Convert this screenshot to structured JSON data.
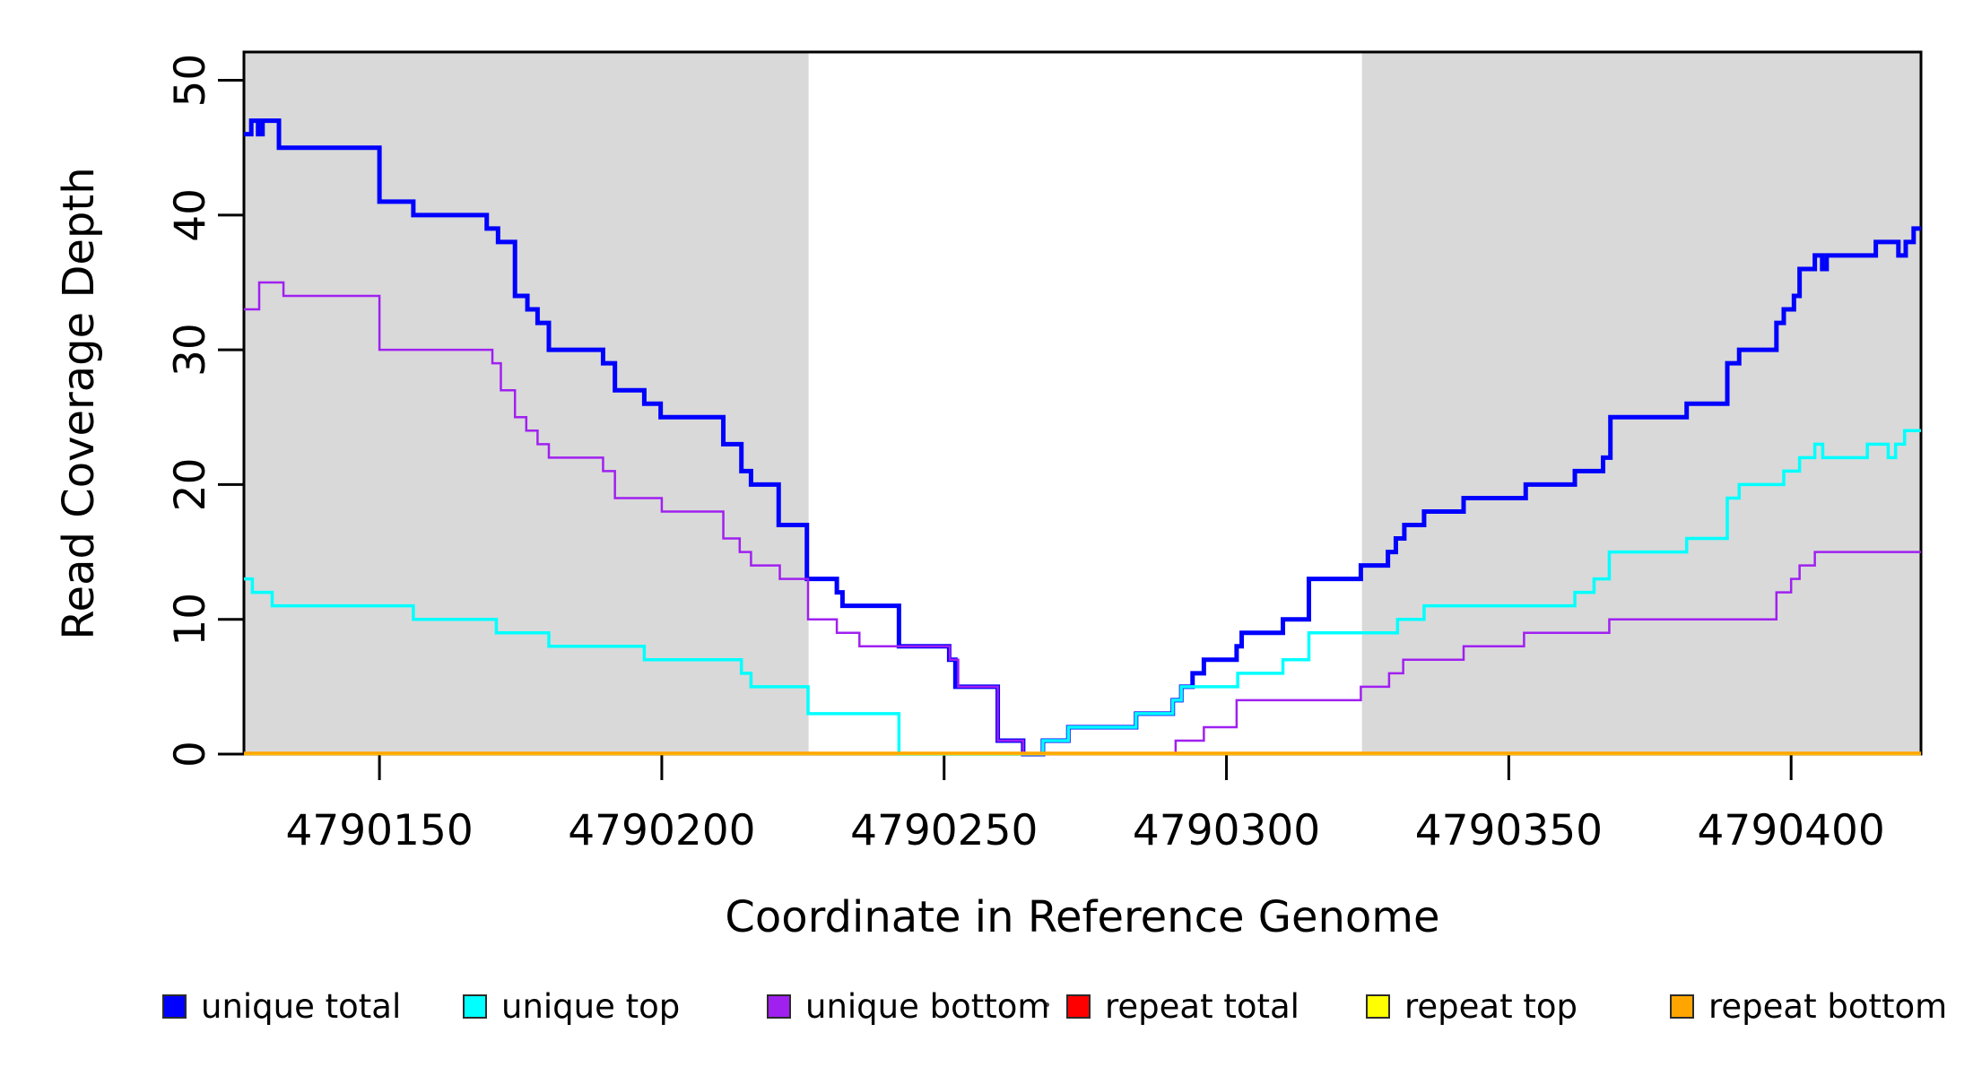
{
  "figure": {
    "background": "#ffffff",
    "plot_border_color": "#000000",
    "shaded_region_color": "#d9d9d9",
    "legend_artifact_dot": true
  },
  "chart_data": {
    "type": "line",
    "subtype": "step",
    "title": "",
    "xlabel": "Coordinate in Reference Genome",
    "ylabel": "Read Coverage Depth",
    "xlim": [
      4790126,
      4790423
    ],
    "ylim": [
      0,
      52.1
    ],
    "x_ticks": [
      4790150,
      4790200,
      4790250,
      4790300,
      4790350,
      4790400
    ],
    "y_ticks": [
      0,
      10,
      20,
      30,
      40,
      50
    ],
    "grid": false,
    "legend_position": "bottom",
    "shaded_regions": [
      {
        "x0": 4790126,
        "x1": 4790226
      },
      {
        "x0": 4790324,
        "x1": 4790423
      }
    ],
    "series": [
      {
        "name": "unique total",
        "color": "#0000ff",
        "width": 5,
        "steps": [
          [
            4790126,
            46
          ],
          [
            4790127.3,
            47
          ],
          [
            4790128.5,
            46
          ],
          [
            4790129.3,
            47
          ],
          [
            4790132.2,
            45
          ],
          [
            4790150,
            41
          ],
          [
            4790156,
            40
          ],
          [
            4790169,
            39
          ],
          [
            4790171,
            38
          ],
          [
            4790174,
            34
          ],
          [
            4790176.2,
            33
          ],
          [
            4790178,
            32
          ],
          [
            4790180,
            30
          ],
          [
            4790189.6,
            29
          ],
          [
            4790191.7,
            27
          ],
          [
            4790196.9,
            26
          ],
          [
            4790199.8,
            25
          ],
          [
            4790210.9,
            23
          ],
          [
            4790214.1,
            21
          ],
          [
            4790215.8,
            20
          ],
          [
            4790220.7,
            17
          ],
          [
            4790225.7,
            13
          ],
          [
            4790231,
            12
          ],
          [
            4790232,
            11
          ],
          [
            4790242,
            8
          ],
          [
            4790250.9,
            7
          ],
          [
            4790252,
            5
          ],
          [
            4790259.5,
            1
          ],
          [
            4790264,
            0
          ],
          [
            4790267.5,
            1
          ],
          [
            4790272,
            2
          ],
          [
            4790284,
            3
          ],
          [
            4790290.5,
            4
          ],
          [
            4790292,
            5
          ],
          [
            4790294,
            6
          ],
          [
            4790296,
            7
          ],
          [
            4790301.8,
            8
          ],
          [
            4790302.7,
            9
          ],
          [
            4790310,
            10
          ],
          [
            4790314.6,
            13
          ],
          [
            4790323.8,
            14
          ],
          [
            4790328.6,
            15
          ],
          [
            4790330,
            16
          ],
          [
            4790331.5,
            17
          ],
          [
            4790335,
            18
          ],
          [
            4790342,
            19
          ],
          [
            4790353,
            20
          ],
          [
            4790361.7,
            21
          ],
          [
            4790366.7,
            22
          ],
          [
            4790368,
            25
          ],
          [
            4790381.5,
            26
          ],
          [
            4790388.7,
            29
          ],
          [
            4790390.8,
            30
          ],
          [
            4790397.4,
            32
          ],
          [
            4790398.7,
            33
          ],
          [
            4790400.5,
            34
          ],
          [
            4790401.5,
            36
          ],
          [
            4790404.2,
            37
          ],
          [
            4790405.5,
            36
          ],
          [
            4790406.3,
            37
          ],
          [
            4790415,
            38
          ],
          [
            4790419,
            37
          ],
          [
            4790420.3,
            38
          ],
          [
            4790421.7,
            39
          ],
          [
            4790423,
            39
          ]
        ]
      },
      {
        "name": "unique top",
        "color": "#00ffff",
        "width": 3.5,
        "steps": [
          [
            4790126,
            13
          ],
          [
            4790127.5,
            12
          ],
          [
            4790131,
            11
          ],
          [
            4790156,
            10
          ],
          [
            4790170.7,
            9
          ],
          [
            4790180,
            8
          ],
          [
            4790196.9,
            7
          ],
          [
            4790214.1,
            6
          ],
          [
            4790215.8,
            5
          ],
          [
            4790225.9,
            3
          ],
          [
            4790242,
            0
          ],
          [
            4790267.5,
            1
          ],
          [
            4790272,
            2
          ],
          [
            4790284,
            3
          ],
          [
            4790290.5,
            4
          ],
          [
            4790292,
            5
          ],
          [
            4790302,
            6
          ],
          [
            4790310,
            7
          ],
          [
            4790314.6,
            9
          ],
          [
            4790330.3,
            10
          ],
          [
            4790335,
            11
          ],
          [
            4790361.7,
            12
          ],
          [
            4790365.1,
            13
          ],
          [
            4790367.8,
            15
          ],
          [
            4790381.5,
            16
          ],
          [
            4790388.7,
            19
          ],
          [
            4790390.8,
            20
          ],
          [
            4790398.7,
            21
          ],
          [
            4790401.5,
            22
          ],
          [
            4790404.2,
            23
          ],
          [
            4790405.6,
            22
          ],
          [
            4790413.5,
            23
          ],
          [
            4790417.2,
            22
          ],
          [
            4790418.5,
            23
          ],
          [
            4790420.1,
            24
          ],
          [
            4790423,
            24
          ]
        ]
      },
      {
        "name": "unique bottom",
        "color": "#a020f0",
        "width": 2.5,
        "steps": [
          [
            4790126,
            33
          ],
          [
            4790128.7,
            35
          ],
          [
            4790133,
            34
          ],
          [
            4790150,
            30
          ],
          [
            4790170,
            29
          ],
          [
            4790171.5,
            27
          ],
          [
            4790174,
            25
          ],
          [
            4790176,
            24
          ],
          [
            4790178,
            23
          ],
          [
            4790180,
            22
          ],
          [
            4790189.6,
            21
          ],
          [
            4790191.7,
            19
          ],
          [
            4790200,
            18
          ],
          [
            4790210.9,
            16
          ],
          [
            4790213.8,
            15
          ],
          [
            4790215.8,
            14
          ],
          [
            4790220.9,
            13
          ],
          [
            4790225.9,
            10
          ],
          [
            4790231,
            9
          ],
          [
            4790235,
            8
          ],
          [
            4790251,
            7
          ],
          [
            4790252.5,
            5
          ],
          [
            4790259.5,
            1
          ],
          [
            4790264,
            0
          ],
          [
            4790291,
            1
          ],
          [
            4790296,
            2
          ],
          [
            4790301.8,
            4
          ],
          [
            4790323.8,
            5
          ],
          [
            4790328.8,
            6
          ],
          [
            4790331.3,
            7
          ],
          [
            4790342,
            8
          ],
          [
            4790352.7,
            9
          ],
          [
            4790367.8,
            10
          ],
          [
            4790397.4,
            12
          ],
          [
            4790400,
            13
          ],
          [
            4790401.5,
            14
          ],
          [
            4790404.2,
            15
          ],
          [
            4790423,
            15
          ]
        ]
      },
      {
        "name": "repeat total",
        "color": "#ff0000",
        "width": 2.5,
        "steps": [
          [
            4790126,
            0
          ],
          [
            4790423,
            0
          ]
        ]
      },
      {
        "name": "repeat top",
        "color": "#ffff00",
        "width": 2.5,
        "steps": [
          [
            4790126,
            0
          ],
          [
            4790423,
            0
          ]
        ]
      },
      {
        "name": "repeat bottom",
        "color": "#ffa500",
        "width": 3.5,
        "steps": [
          [
            4790126,
            0
          ],
          [
            4790423,
            0
          ]
        ]
      }
    ]
  }
}
